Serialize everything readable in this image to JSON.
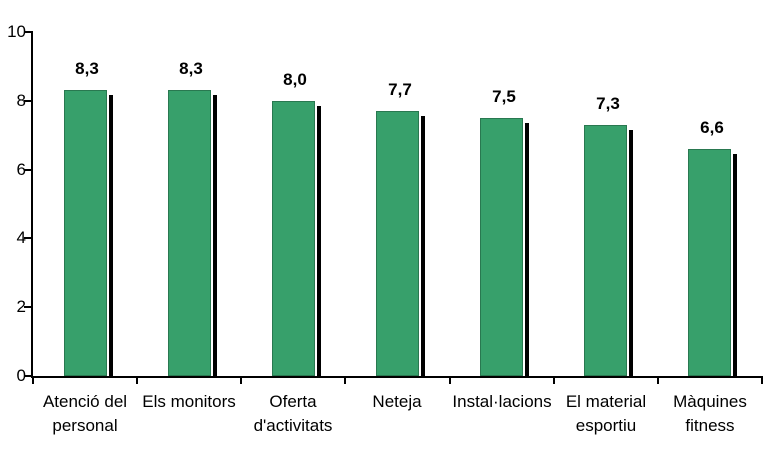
{
  "chart_data": {
    "type": "bar",
    "title": "",
    "categories": [
      "Atenció del personal",
      "Els monitors",
      "Oferta d'activitats",
      "Neteja",
      "Instal·lacions",
      "El material esportiu",
      "Màquines fitness"
    ],
    "category_label_lines": [
      [
        "Atenció del",
        "personal"
      ],
      [
        "Els monitors"
      ],
      [
        "Oferta",
        "d'activitats"
      ],
      [
        "Neteja"
      ],
      [
        "Instal·lacions"
      ],
      [
        "El material",
        "esportiu"
      ],
      [
        "Màquines",
        "fitness"
      ]
    ],
    "values": [
      8.3,
      8.3,
      8.0,
      7.7,
      7.5,
      7.3,
      6.6
    ],
    "value_labels": [
      "8,3",
      "8,3",
      "8,0",
      "7,7",
      "7,5",
      "7,3",
      "6,6"
    ],
    "xlabel": "",
    "ylabel": "",
    "ylim": [
      0,
      10
    ],
    "yticks": [
      0,
      2,
      4,
      6,
      8,
      10
    ],
    "grid": "off",
    "legend": "none",
    "colors": {
      "bar_fill": "#37a06b",
      "bar_shadow": "#000000",
      "axis": "#000000",
      "text": "#000000",
      "background": "#ffffff"
    }
  }
}
